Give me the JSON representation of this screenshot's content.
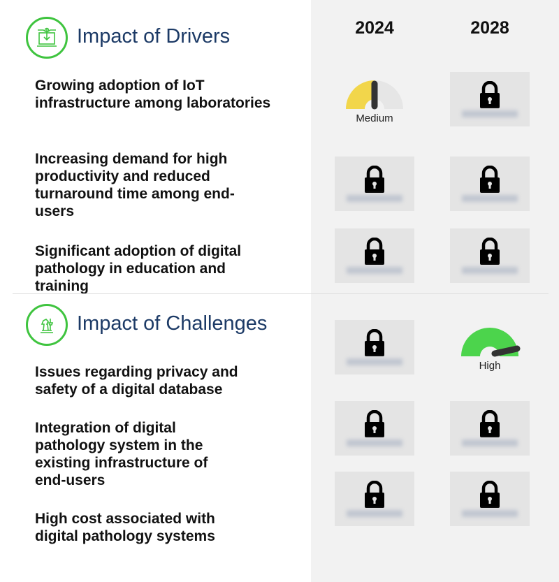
{
  "years": [
    "2024",
    "2028"
  ],
  "drivers": {
    "title": "Impact of Drivers",
    "icon": "laptop-circuit-icon",
    "items": [
      "Growing adoption of IoT infrastructure among laboratories",
      "Increasing demand for high productivity and reduced turnaround time among end-users",
      "Significant adoption of digital pathology in education and training"
    ]
  },
  "challenges": {
    "title": "Impact of Challenges",
    "icon": "chess-pieces-icon",
    "items": [
      "Issues regarding privacy and safety of a digital database",
      "Integration of digital pathology system in the existing infrastructure of end-users",
      "High cost associated with digital pathology systems"
    ]
  },
  "gauges": {
    "drivers_row1_2024": {
      "label": "Medium",
      "level": 0.5,
      "color": "#f2d64b"
    },
    "challenges_row1_2028": {
      "label": "High",
      "level": 0.95,
      "color": "#4cd44c"
    }
  },
  "colors": {
    "accent": "#3fc43f",
    "heading": "#1c3a66",
    "panel": "#f2f2f2"
  }
}
